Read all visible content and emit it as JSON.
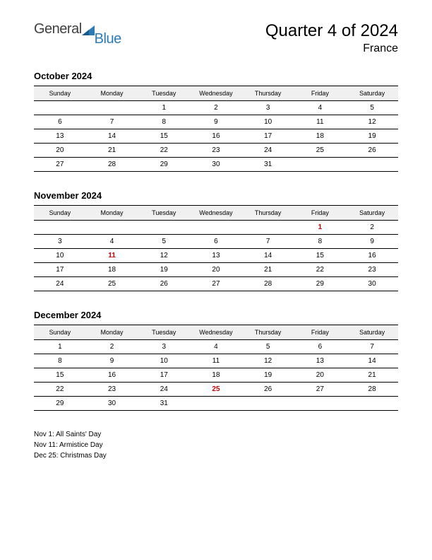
{
  "logo": {
    "part1": "General",
    "part2": "Blue",
    "color1": "#404040",
    "color2": "#2b7bb9"
  },
  "header": {
    "title": "Quarter 4 of 2024",
    "subtitle": "France"
  },
  "day_headers": [
    "Sunday",
    "Monday",
    "Tuesday",
    "Wednesday",
    "Thursday",
    "Friday",
    "Saturday"
  ],
  "months": [
    {
      "title": "October 2024",
      "weeks": [
        [
          "",
          "",
          "1",
          "2",
          "3",
          "4",
          "5"
        ],
        [
          "6",
          "7",
          "8",
          "9",
          "10",
          "11",
          "12"
        ],
        [
          "13",
          "14",
          "15",
          "16",
          "17",
          "18",
          "19"
        ],
        [
          "20",
          "21",
          "22",
          "23",
          "24",
          "25",
          "26"
        ],
        [
          "27",
          "28",
          "29",
          "30",
          "31",
          "",
          ""
        ]
      ],
      "holidays": []
    },
    {
      "title": "November 2024",
      "weeks": [
        [
          "",
          "",
          "",
          "",
          "",
          "1",
          "2"
        ],
        [
          "3",
          "4",
          "5",
          "6",
          "7",
          "8",
          "9"
        ],
        [
          "10",
          "11",
          "12",
          "13",
          "14",
          "15",
          "16"
        ],
        [
          "17",
          "18",
          "19",
          "20",
          "21",
          "22",
          "23"
        ],
        [
          "24",
          "25",
          "26",
          "27",
          "28",
          "29",
          "30"
        ]
      ],
      "holidays": [
        [
          0,
          5
        ],
        [
          2,
          1
        ]
      ]
    },
    {
      "title": "December 2024",
      "weeks": [
        [
          "1",
          "2",
          "3",
          "4",
          "5",
          "6",
          "7"
        ],
        [
          "8",
          "9",
          "10",
          "11",
          "12",
          "13",
          "14"
        ],
        [
          "15",
          "16",
          "17",
          "18",
          "19",
          "20",
          "21"
        ],
        [
          "22",
          "23",
          "24",
          "25",
          "26",
          "27",
          "28"
        ],
        [
          "29",
          "30",
          "31",
          "",
          "",
          "",
          ""
        ]
      ],
      "holidays": [
        [
          3,
          3
        ]
      ]
    }
  ],
  "holiday_list": [
    "Nov 1: All Saints' Day",
    "Nov 11: Armistice Day",
    "Dec 25: Christmas Day"
  ],
  "style": {
    "background": "#ffffff",
    "text_color": "#000000",
    "holiday_color": "#cc0000",
    "header_bg": "#f0f0f0",
    "border_color": "#000000",
    "title_fontsize": 24,
    "subtitle_fontsize": 16,
    "month_title_fontsize": 13,
    "day_header_fontsize": 9,
    "cell_fontsize": 10,
    "holiday_list_fontsize": 10
  }
}
